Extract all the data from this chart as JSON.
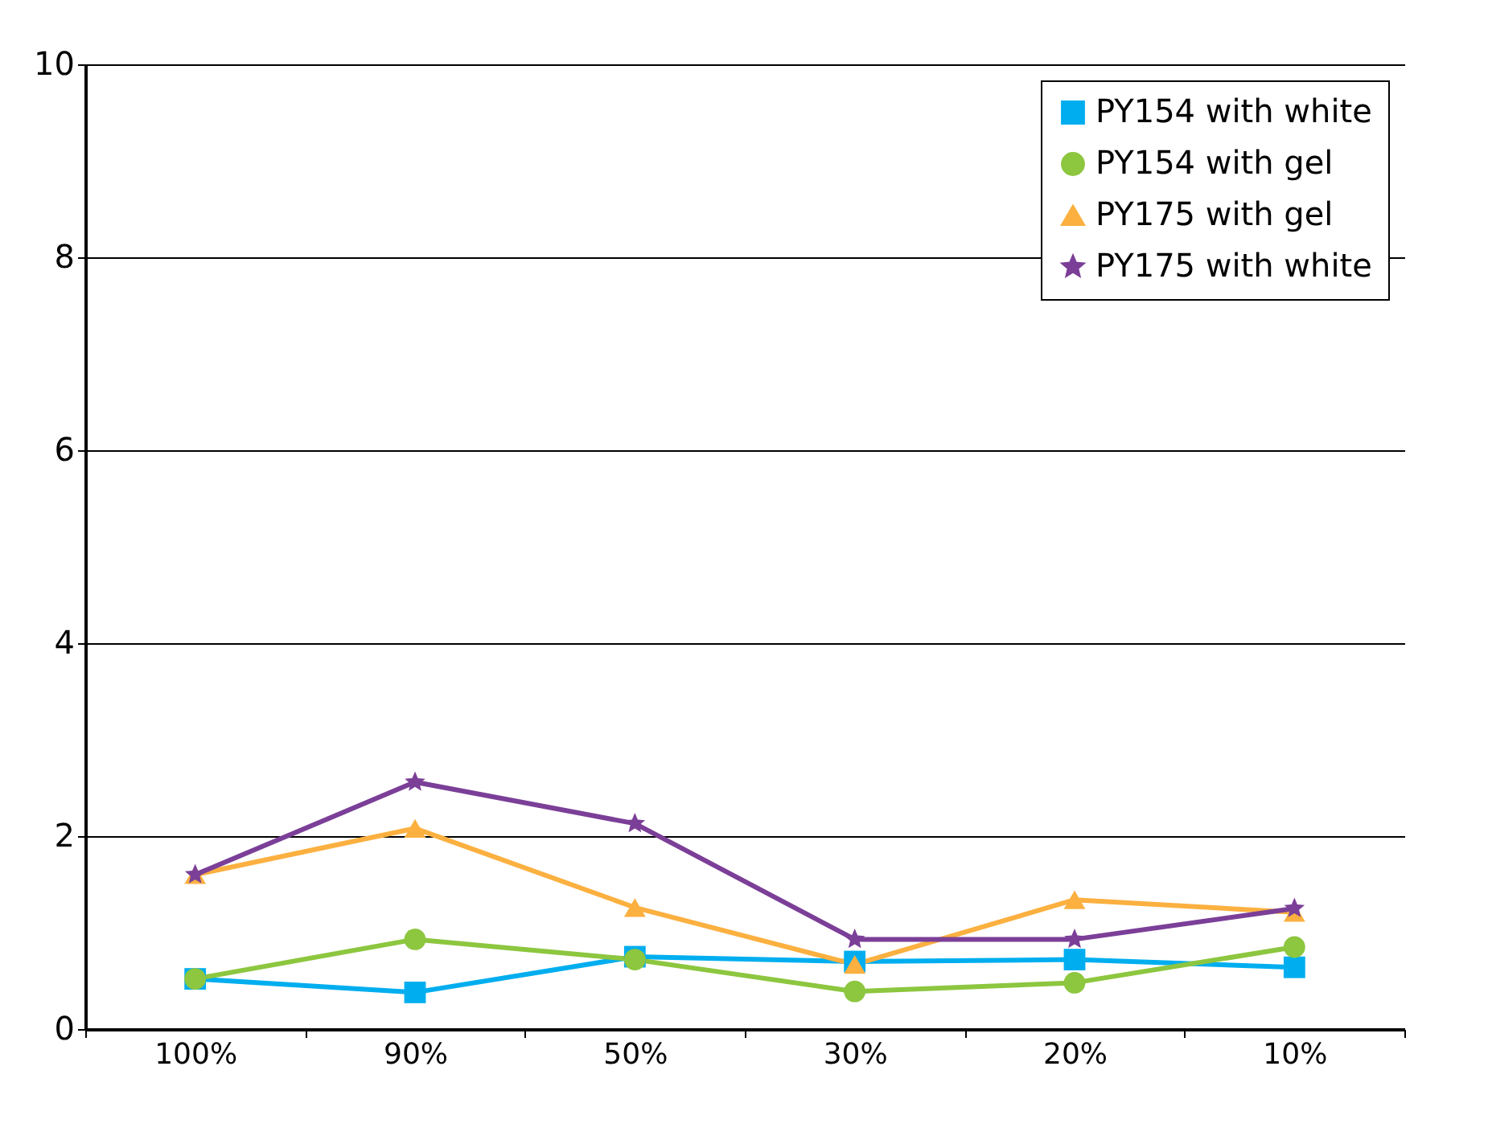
{
  "chart_data": {
    "type": "line",
    "categories": [
      "100%",
      "90%",
      "50%",
      "30%",
      "20%",
      "10%"
    ],
    "series": [
      {
        "name": "PY154 with white",
        "color": "#00aeef",
        "marker": "square",
        "values": [
          0.52,
          0.38,
          0.75,
          0.7,
          0.72,
          0.64
        ]
      },
      {
        "name": "PY154 with gel",
        "color": "#8dc63f",
        "marker": "circle",
        "values": [
          0.52,
          0.93,
          0.72,
          0.39,
          0.48,
          0.85
        ]
      },
      {
        "name": "PY175 with gel",
        "color": "#fbb040",
        "marker": "triangle",
        "values": [
          1.6,
          2.08,
          1.26,
          0.67,
          1.34,
          1.21
        ]
      },
      {
        "name": "PY175 with white",
        "color": "#7b3f98",
        "marker": "star",
        "values": [
          1.6,
          2.56,
          2.13,
          0.93,
          0.93,
          1.25
        ]
      }
    ],
    "ylim": [
      0,
      10
    ],
    "yticks": [
      0,
      2,
      4,
      6,
      8,
      10
    ],
    "grid": "y",
    "legend": "top right",
    "line_style": "solid"
  }
}
